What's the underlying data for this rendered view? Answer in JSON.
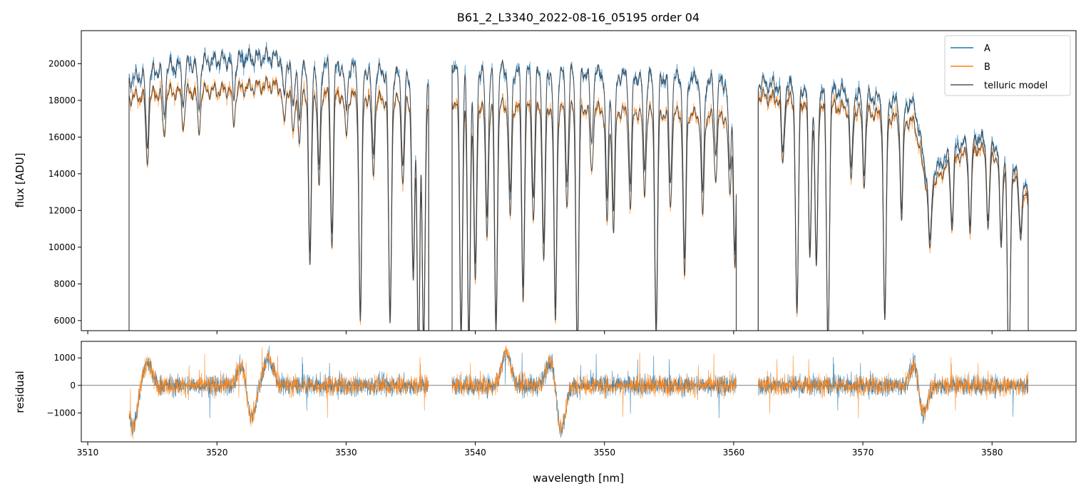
{
  "colors": {
    "A": "#1f77b4",
    "B": "#ff7f0e",
    "model": "#404040",
    "zero_line": "#333333",
    "frame": "#000000",
    "background": "#ffffff"
  },
  "chart_data": [
    {
      "type": "line",
      "panel": "flux",
      "title": "B61_2_L3340_2022-08-16_05195  order 04",
      "xlabel": "",
      "ylabel": "flux [ADU]",
      "xlim": [
        3509.5,
        3586.5
      ],
      "ylim": [
        5450,
        21800
      ],
      "xticks": [
        3510,
        3520,
        3530,
        3540,
        3550,
        3560,
        3570,
        3580
      ],
      "yticks": [
        6000,
        8000,
        10000,
        12000,
        14000,
        16000,
        18000,
        20000
      ],
      "ytick_labels": [
        "6000",
        "8000",
        "10000",
        "12000",
        "14000",
        "16000",
        "18000",
        "20000"
      ],
      "grid": false,
      "legend_position": "top-right",
      "legend": [
        "A",
        "B",
        "telluric model"
      ],
      "segments": [
        [
          3513.2,
          3536.4
        ],
        [
          3538.2,
          3560.2
        ],
        [
          3561.9,
          3582.8
        ]
      ],
      "continuum": {
        "x": [
          3513.2,
          3516,
          3520,
          3524,
          3527,
          3530,
          3533,
          3536,
          3538.2,
          3541,
          3545,
          3549,
          3552,
          3556,
          3560,
          3562,
          3565,
          3568,
          3571,
          3574,
          3575,
          3577,
          3579,
          3581,
          3582.8
        ],
        "A": [
          19600,
          20300,
          20700,
          20900,
          20600,
          20300,
          20000,
          19600,
          20500,
          20200,
          20100,
          20000,
          19800,
          19700,
          19400,
          19400,
          19200,
          19000,
          18600,
          18200,
          14000,
          15800,
          16400,
          15600,
          13300
        ],
        "B": [
          18600,
          18900,
          19000,
          19300,
          19000,
          18700,
          18500,
          18300,
          18400,
          18200,
          18100,
          18000,
          17800,
          17700,
          17500,
          18700,
          18400,
          18100,
          17700,
          17200,
          13400,
          15200,
          15800,
          15000,
          12800
        ]
      },
      "absorption_lines": [
        {
          "x": 3514.6,
          "depth": 0.2
        },
        {
          "x": 3515.9,
          "depth": 0.13
        },
        {
          "x": 3517.4,
          "depth": 0.1
        },
        {
          "x": 3518.6,
          "depth": 0.12
        },
        {
          "x": 3521.3,
          "depth": 0.1
        },
        {
          "x": 3525.2,
          "depth": 0.11
        },
        {
          "x": 3525.9,
          "depth": 0.14
        },
        {
          "x": 3526.4,
          "depth": 0.16
        },
        {
          "x": 3527.2,
          "depth": 0.52
        },
        {
          "x": 3527.9,
          "depth": 0.28
        },
        {
          "x": 3528.9,
          "depth": 0.45
        },
        {
          "x": 3530.0,
          "depth": 0.12
        },
        {
          "x": 3531.1,
          "depth": 0.67
        },
        {
          "x": 3532.1,
          "depth": 0.23
        },
        {
          "x": 3533.4,
          "depth": 0.68
        },
        {
          "x": 3534.4,
          "depth": 0.25
        },
        {
          "x": 3535.2,
          "depth": 0.55
        },
        {
          "x": 3535.6,
          "depth": 0.78
        },
        {
          "x": 3536.0,
          "depth": 0.75
        },
        {
          "x": 3538.9,
          "depth": 0.72
        },
        {
          "x": 3539.5,
          "depth": 0.75
        },
        {
          "x": 3540.0,
          "depth": 0.55
        },
        {
          "x": 3540.9,
          "depth": 0.4
        },
        {
          "x": 3541.6,
          "depth": 0.7
        },
        {
          "x": 3542.7,
          "depth": 0.35
        },
        {
          "x": 3543.7,
          "depth": 0.6
        },
        {
          "x": 3544.5,
          "depth": 0.35
        },
        {
          "x": 3545.3,
          "depth": 0.48
        },
        {
          "x": 3546.2,
          "depth": 0.66
        },
        {
          "x": 3547.1,
          "depth": 0.3
        },
        {
          "x": 3547.9,
          "depth": 0.78
        },
        {
          "x": 3549.0,
          "depth": 0.2
        },
        {
          "x": 3550.2,
          "depth": 0.35
        },
        {
          "x": 3550.7,
          "depth": 0.38
        },
        {
          "x": 3552.0,
          "depth": 0.3
        },
        {
          "x": 3553.1,
          "depth": 0.25
        },
        {
          "x": 3554.0,
          "depth": 0.7
        },
        {
          "x": 3555.1,
          "depth": 0.3
        },
        {
          "x": 3556.2,
          "depth": 0.52
        },
        {
          "x": 3557.6,
          "depth": 0.32
        },
        {
          "x": 3558.6,
          "depth": 0.2
        },
        {
          "x": 3559.7,
          "depth": 0.25
        },
        {
          "x": 3560.1,
          "depth": 0.48
        },
        {
          "x": 3563.8,
          "depth": 0.2
        },
        {
          "x": 3564.9,
          "depth": 0.65
        },
        {
          "x": 3565.9,
          "depth": 0.47
        },
        {
          "x": 3566.4,
          "depth": 0.5
        },
        {
          "x": 3567.3,
          "depth": 0.75
        },
        {
          "x": 3569.1,
          "depth": 0.23
        },
        {
          "x": 3570.1,
          "depth": 0.22
        },
        {
          "x": 3571.7,
          "depth": 0.65
        },
        {
          "x": 3573.0,
          "depth": 0.32
        },
        {
          "x": 3575.2,
          "depth": 0.26
        },
        {
          "x": 3576.9,
          "depth": 0.25
        },
        {
          "x": 3578.3,
          "depth": 0.28
        },
        {
          "x": 3579.7,
          "depth": 0.27
        },
        {
          "x": 3580.7,
          "depth": 0.32
        },
        {
          "x": 3581.3,
          "depth": 0.8
        },
        {
          "x": 3582.2,
          "depth": 0.2
        }
      ]
    },
    {
      "type": "line",
      "panel": "residual",
      "xlabel": "wavelength [nm]",
      "ylabel": "residual",
      "xlim": [
        3509.5,
        3586.5
      ],
      "ylim": [
        -2050,
        1600
      ],
      "xticks": [
        3510,
        3520,
        3530,
        3540,
        3550,
        3560,
        3570,
        3580
      ],
      "xtick_labels": [
        "3510",
        "3520",
        "3530",
        "3540",
        "3550",
        "3560",
        "3570",
        "3580"
      ],
      "yticks": [
        -1000,
        0,
        1000
      ],
      "ytick_labels": [
        "−1000",
        "0",
        "1000"
      ],
      "zero_line": 0,
      "features": [
        {
          "x": 3513.5,
          "value": -1500
        },
        {
          "x": 3514.6,
          "value": 800
        },
        {
          "x": 3522.0,
          "value": 900
        },
        {
          "x": 3522.6,
          "value": -1300
        },
        {
          "x": 3524.0,
          "value": 1000
        },
        {
          "x": 3542.4,
          "value": 1200
        },
        {
          "x": 3545.9,
          "value": 1100
        },
        {
          "x": 3546.6,
          "value": -1700
        },
        {
          "x": 3574.1,
          "value": 1000
        },
        {
          "x": 3574.6,
          "value": -1300
        }
      ]
    }
  ]
}
